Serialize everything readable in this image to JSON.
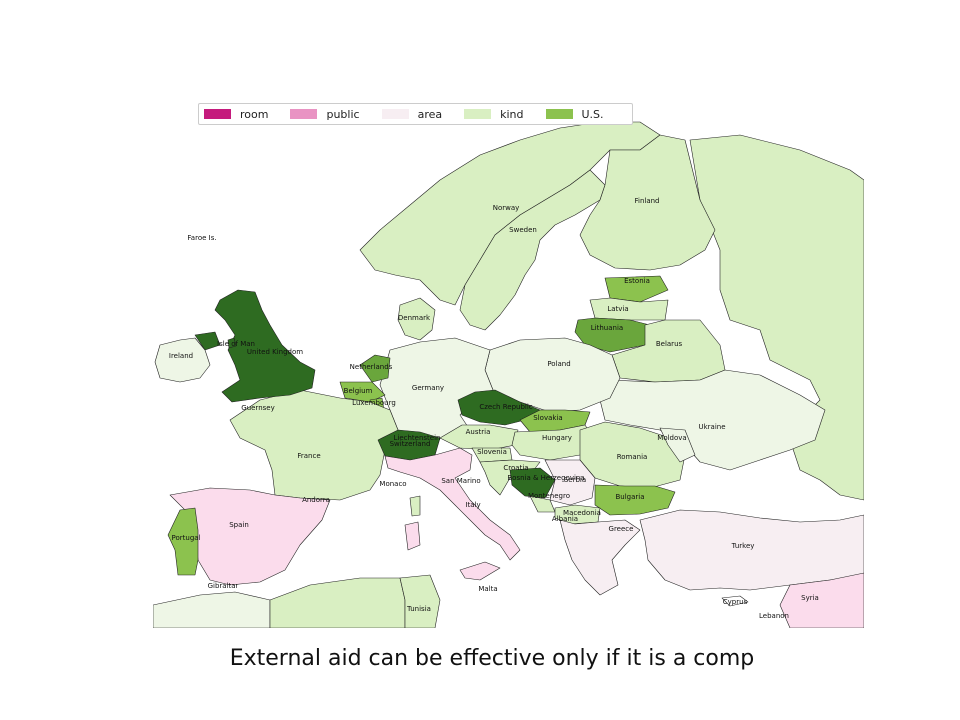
{
  "legend": {
    "items": [
      {
        "label": "room",
        "color": "#c51b7d"
      },
      {
        "label": "public",
        "color": "#e993c3"
      },
      {
        "label": "area",
        "color": "#f7eef2"
      },
      {
        "label": "kind",
        "color": "#d9efc2"
      },
      {
        "label": "U.S.",
        "color": "#8cc24e"
      }
    ]
  },
  "caption": "External aid can be effective only if it is a comp",
  "colors": {
    "dark_green": "#2e6b21",
    "mid_green": "#6aa63c",
    "light_green": "#8cc24e",
    "pale_green": "#d9efc2",
    "very_pale_green": "#eef6e6",
    "pale_pink": "#f7eef2",
    "pink": "#fbdcec",
    "sea": "#ffffff"
  },
  "countries": [
    {
      "name": "Faroe Is.",
      "category": "none"
    },
    {
      "name": "Norway",
      "category": "kind"
    },
    {
      "name": "Sweden",
      "category": "kind"
    },
    {
      "name": "Finland",
      "category": "kind"
    },
    {
      "name": "Estonia",
      "category": "U.S."
    },
    {
      "name": "Latvia",
      "category": "kind"
    },
    {
      "name": "Lithuania",
      "category": "mid"
    },
    {
      "name": "Denmark",
      "category": "kind"
    },
    {
      "name": "Ireland",
      "category": "pale"
    },
    {
      "name": "Isle of Man",
      "category": "dark"
    },
    {
      "name": "United Kingdom",
      "category": "dark"
    },
    {
      "name": "Guernsey",
      "category": "dark"
    },
    {
      "name": "Netherlands",
      "category": "mid"
    },
    {
      "name": "Belgium",
      "category": "light"
    },
    {
      "name": "Luxembourg",
      "category": "light"
    },
    {
      "name": "Germany",
      "category": "pale"
    },
    {
      "name": "Poland",
      "category": "pale"
    },
    {
      "name": "Belarus",
      "category": "kind"
    },
    {
      "name": "Czech Republic",
      "category": "dark"
    },
    {
      "name": "Slovakia",
      "category": "U.S."
    },
    {
      "name": "Ukraine",
      "category": "pale"
    },
    {
      "name": "France",
      "category": "kind"
    },
    {
      "name": "Liechtenstein",
      "category": "dark"
    },
    {
      "name": "Switzerland",
      "category": "dark"
    },
    {
      "name": "Austria",
      "category": "kind"
    },
    {
      "name": "Hungary",
      "category": "kind"
    },
    {
      "name": "Moldova",
      "category": "pale"
    },
    {
      "name": "Romania",
      "category": "kind"
    },
    {
      "name": "Slovenia",
      "category": "kind"
    },
    {
      "name": "Croatia",
      "category": "kind"
    },
    {
      "name": "Serbia",
      "category": "area"
    },
    {
      "name": "Bosnia & Herzegovina",
      "category": "dark"
    },
    {
      "name": "Monaco",
      "category": "none"
    },
    {
      "name": "San Marino",
      "category": "none"
    },
    {
      "name": "Montenegro",
      "category": "kind"
    },
    {
      "name": "Bulgaria",
      "category": "U.S."
    },
    {
      "name": "Andorra",
      "category": "none"
    },
    {
      "name": "Italy",
      "category": "public"
    },
    {
      "name": "Macedonia",
      "category": "kind"
    },
    {
      "name": "Albania",
      "category": "kind"
    },
    {
      "name": "Spain",
      "category": "public"
    },
    {
      "name": "Portugal",
      "category": "U.S."
    },
    {
      "name": "Greece",
      "category": "area"
    },
    {
      "name": "Turkey",
      "category": "area"
    },
    {
      "name": "Gibraltar",
      "category": "none"
    },
    {
      "name": "Malta",
      "category": "none"
    },
    {
      "name": "Tunisia",
      "category": "kind"
    },
    {
      "name": "Cyprus",
      "category": "none"
    },
    {
      "name": "Syria",
      "category": "public"
    },
    {
      "name": "Lebanon",
      "category": "none"
    }
  ]
}
